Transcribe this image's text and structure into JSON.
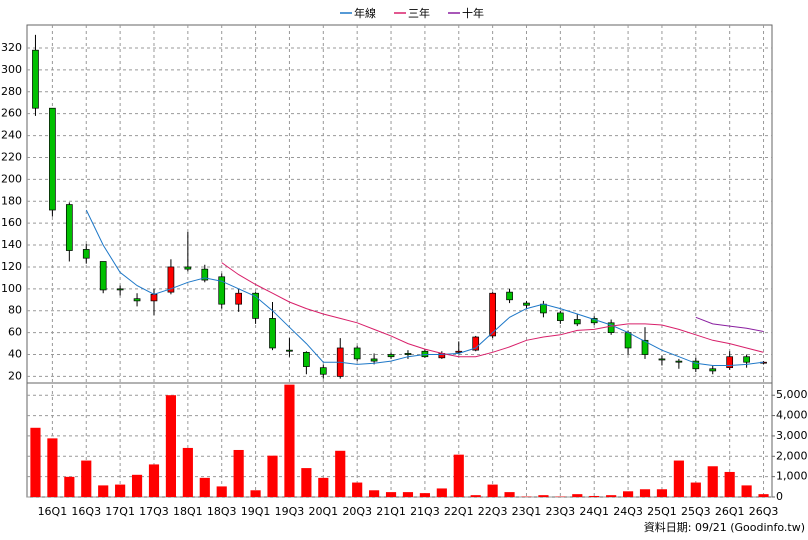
{
  "chart_data": {
    "type": "candlestick",
    "categories": [
      null,
      "16Q1",
      null,
      "16Q3",
      null,
      "17Q1",
      null,
      "17Q3",
      null,
      "18Q1",
      null,
      "18Q3",
      null,
      "19Q1",
      null,
      "19Q3",
      null,
      "20Q1",
      null,
      "20Q3",
      null,
      "21Q1",
      null,
      "21Q3",
      null,
      "22Q1",
      null,
      "22Q3",
      null,
      "23Q1",
      null,
      "23Q3",
      null,
      "24Q1",
      null,
      "24Q3",
      null,
      "25Q1",
      null,
      "25Q3",
      null,
      "26Q1",
      null,
      "26Q3"
    ],
    "open": [
      318,
      265,
      177,
      136,
      125,
      100,
      91,
      89,
      97,
      120,
      118,
      111,
      86,
      96,
      73,
      44,
      42,
      28,
      20,
      46,
      36,
      40,
      41,
      43,
      37,
      42,
      44,
      57,
      97,
      87,
      86,
      78,
      72,
      73,
      69,
      60,
      53,
      36,
      34,
      34,
      27,
      28,
      38,
      33
    ],
    "high": [
      332,
      265,
      179,
      141,
      125,
      103,
      96,
      100,
      127,
      152,
      122,
      114,
      100,
      97,
      88,
      55,
      43,
      31,
      55,
      48,
      41,
      42,
      44,
      45,
      43,
      52,
      57,
      97,
      100,
      89,
      89,
      80,
      77,
      75,
      72,
      62,
      65,
      39,
      36,
      37,
      30,
      43,
      40,
      34
    ],
    "low": [
      258,
      166,
      125,
      123,
      96,
      94,
      84,
      76,
      95,
      116,
      106,
      82,
      79,
      68,
      44,
      38,
      22,
      18,
      18,
      34,
      31,
      36,
      36,
      37,
      36,
      40,
      43,
      55,
      87,
      82,
      74,
      68,
      66,
      67,
      58,
      40,
      36,
      30,
      27,
      24,
      22,
      26,
      28,
      31
    ],
    "close": [
      265,
      172,
      135,
      128,
      99,
      99,
      89,
      95,
      120,
      118,
      108,
      86,
      96,
      73,
      46,
      43,
      29,
      22,
      46,
      36,
      34,
      38,
      40,
      38,
      41,
      43,
      56,
      96,
      90,
      85,
      78,
      71,
      68,
      69,
      60,
      46,
      40,
      35,
      33,
      27,
      25,
      38,
      33,
      33
    ],
    "up_color": "#ff0000",
    "down_color": "#00c000",
    "ylim": [
      14,
      341
    ],
    "yticks": [
      20,
      40,
      60,
      80,
      100,
      120,
      140,
      160,
      180,
      200,
      220,
      240,
      260,
      280,
      300,
      320
    ],
    "grid": true,
    "series": [
      {
        "name": "年線",
        "color": "#1e78c8",
        "values": [
          null,
          null,
          null,
          172,
          140,
          115,
          103,
          95,
          100,
          106,
          110,
          107,
          100,
          93,
          80,
          65,
          50,
          33,
          33,
          31,
          32,
          34,
          38,
          40,
          40,
          41,
          46,
          60,
          74,
          82,
          86,
          82,
          77,
          72,
          67,
          60,
          52,
          44,
          38,
          32,
          30,
          30,
          31,
          33
        ]
      },
      {
        "name": "三年",
        "color": "#d8206a",
        "values": [
          null,
          null,
          null,
          null,
          null,
          null,
          null,
          null,
          null,
          null,
          null,
          124,
          113,
          104,
          96,
          88,
          82,
          77,
          73,
          69,
          63,
          57,
          50,
          45,
          41,
          38,
          38,
          42,
          47,
          53,
          56,
          58,
          62,
          63,
          66,
          68,
          68,
          67,
          63,
          58,
          53,
          50,
          46,
          42
        ]
      },
      {
        "name": "十年",
        "color": "#8a1fa0",
        "values": [
          null,
          null,
          null,
          null,
          null,
          null,
          null,
          null,
          null,
          null,
          null,
          null,
          null,
          null,
          null,
          null,
          null,
          null,
          null,
          null,
          null,
          null,
          null,
          null,
          null,
          null,
          null,
          null,
          null,
          null,
          null,
          null,
          null,
          null,
          null,
          null,
          null,
          null,
          null,
          74,
          68,
          66,
          64,
          61
        ]
      }
    ],
    "volume": {
      "color": "#ff0000",
      "values": [
        3400,
        2880,
        990,
        1790,
        570,
        610,
        1090,
        1600,
        5000,
        2410,
        940,
        520,
        2310,
        330,
        2030,
        5520,
        1420,
        940,
        2270,
        710,
        330,
        240,
        240,
        190,
        420,
        2080,
        90,
        610,
        240,
        20,
        90,
        20,
        140,
        50,
        90,
        280,
        380,
        380,
        1790,
        710,
        1510,
        1230,
        570,
        140
      ],
      "ylim": [
        0,
        5600
      ],
      "yticks": [
        0,
        {
          "value": 1000,
          "label": "1,000"
        },
        {
          "value": 2000,
          "label": "2,000"
        },
        {
          "value": 3000,
          "label": "3,000"
        },
        {
          "value": 4000,
          "label": "4,000"
        },
        {
          "value": 5000,
          "label": "5,000"
        }
      ]
    },
    "footer": "資料日期: 09/21  (Goodinfo.tw)"
  }
}
